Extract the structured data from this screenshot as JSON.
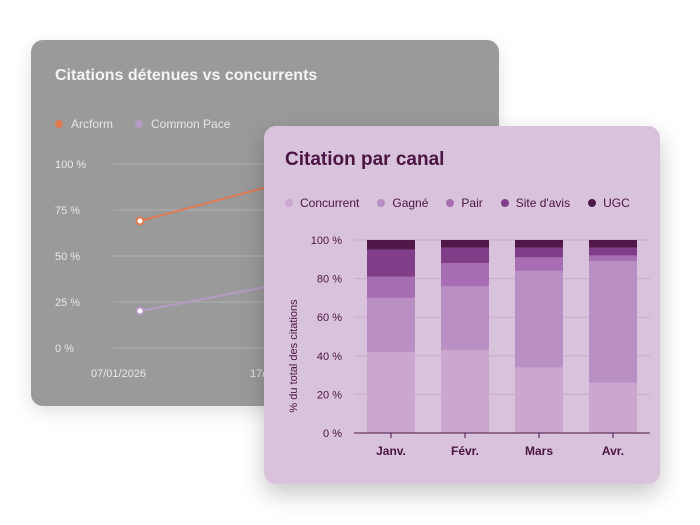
{
  "back_chart": {
    "title": "Citations détenues vs concurrents",
    "legend": [
      {
        "label": "Arcform",
        "color": "#e07a52"
      },
      {
        "label": "Common Pace",
        "color": "#b59bc4"
      }
    ],
    "yticks": [
      "100 %",
      "75 %",
      "50 %",
      "25 %",
      "0 %"
    ],
    "xticks": [
      "07/01/2026",
      "17/"
    ]
  },
  "chart_data": {
    "type": "bar",
    "stacked": true,
    "title": "Citation par canal",
    "xlabel": "",
    "ylabel": "% du total des citations",
    "ylim": [
      0,
      100
    ],
    "yticks": [
      "0 %",
      "20 %",
      "40 %",
      "60 %",
      "80 %",
      "100 %"
    ],
    "categories": [
      "Janv.",
      "Févr.",
      "Mars",
      "Avr."
    ],
    "series": [
      {
        "name": "Concurrent",
        "color": "#cba7cf",
        "values": [
          42,
          43,
          34,
          26
        ]
      },
      {
        "name": "Gagné",
        "color": "#ba8fc4",
        "values": [
          28,
          33,
          50,
          63
        ]
      },
      {
        "name": "Pair",
        "color": "#a86eb3",
        "values": [
          11,
          12,
          7,
          3
        ]
      },
      {
        "name": "Site d'avis",
        "color": "#823d88",
        "values": [
          14,
          8,
          5,
          4
        ]
      },
      {
        "name": "UGC",
        "color": "#4f1849",
        "values": [
          5,
          4,
          4,
          4
        ]
      }
    ]
  }
}
